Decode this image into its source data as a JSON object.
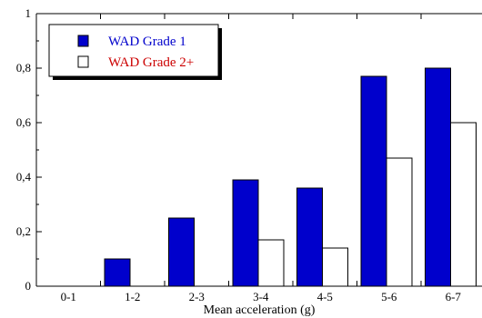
{
  "chart_data": {
    "type": "bar",
    "title": "",
    "xlabel": "Mean acceleration (g)",
    "ylabel": "",
    "ylim": [
      0,
      1
    ],
    "yticks": [
      "0",
      "0,2",
      "0,4",
      "0,6",
      "0,8",
      "1"
    ],
    "categories": [
      "0-1",
      "1-2",
      "2-3",
      "3-4",
      "4-5",
      "5-6",
      "6-7"
    ],
    "series": [
      {
        "name": "WAD Grade 1",
        "values": [
          0,
          0.1,
          0.25,
          0.39,
          0.36,
          0.77,
          0.8
        ],
        "fill": "#0000cc",
        "label_color": "#0000cc"
      },
      {
        "name": "WAD Grade 2+",
        "values": [
          0,
          0,
          0,
          0.17,
          0.14,
          0.47,
          0.6
        ],
        "fill": "#ffffff",
        "label_color": "#cc0000"
      }
    ],
    "legend_position": "top-left",
    "grid": false
  }
}
